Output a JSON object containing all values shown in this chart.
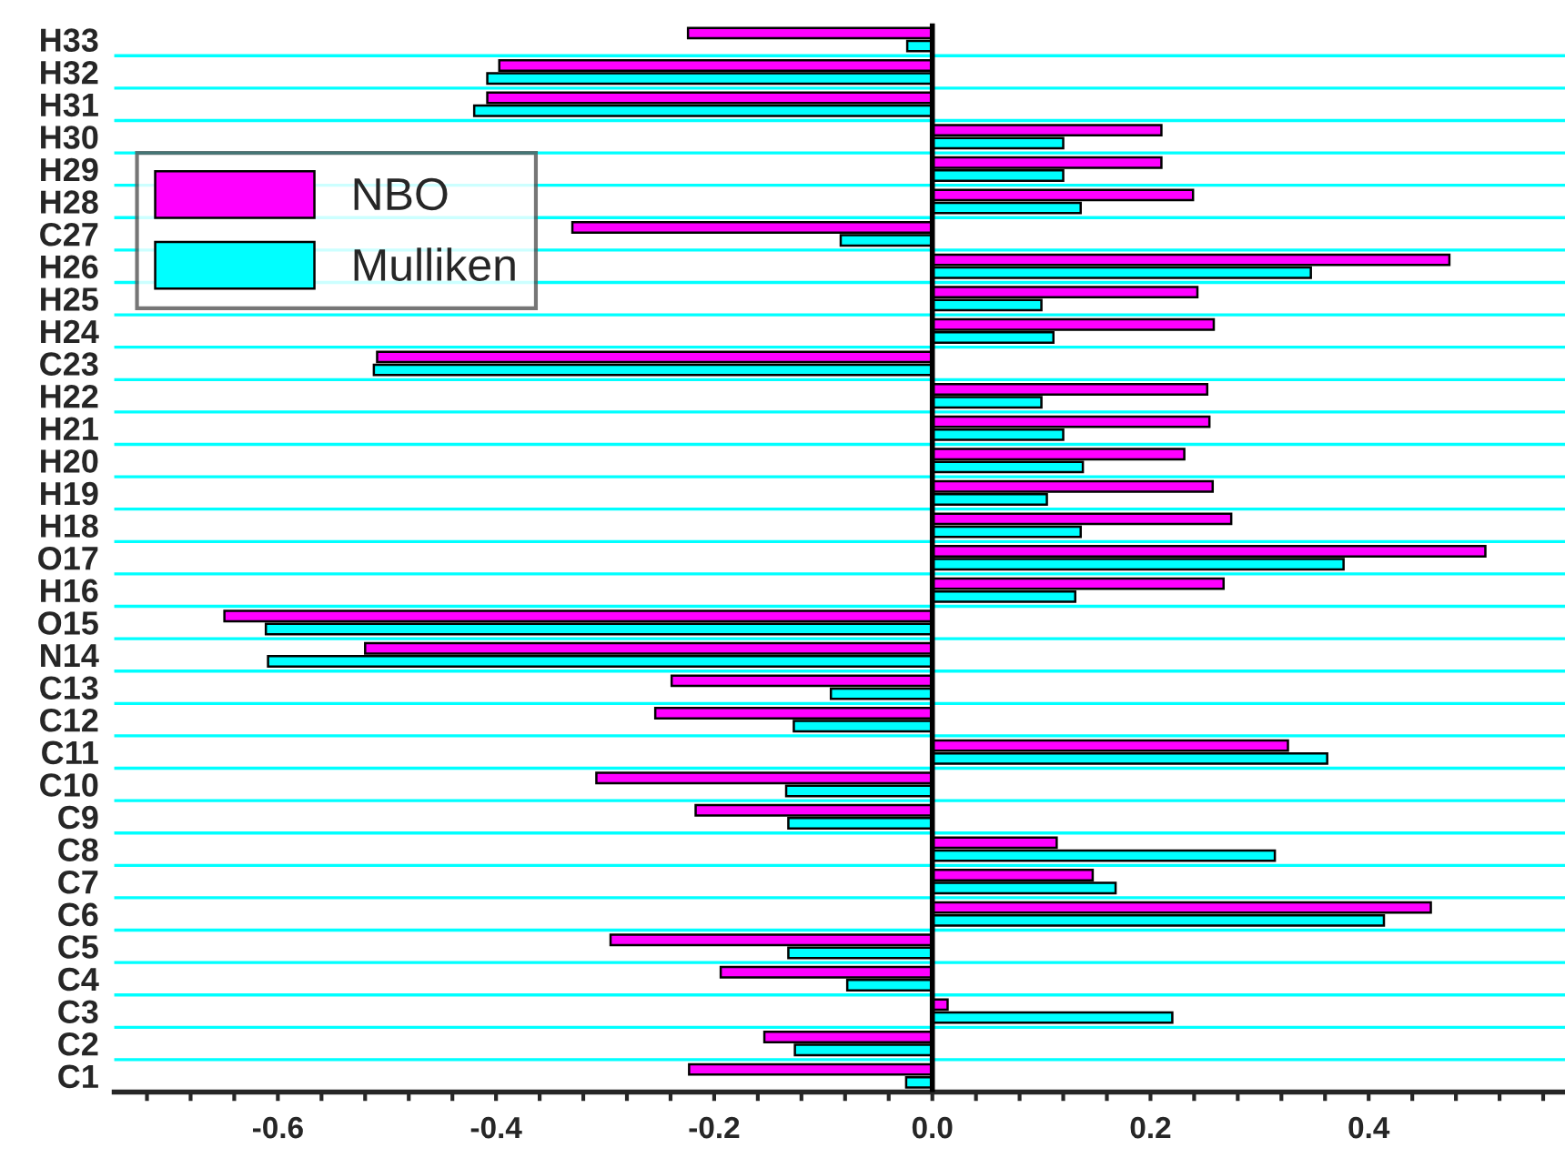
{
  "chart_data": {
    "type": "bar",
    "orientation": "horizontal",
    "categories": [
      "H33",
      "H32",
      "H31",
      "H30",
      "H29",
      "H28",
      "C27",
      "H26",
      "H25",
      "H24",
      "C23",
      "H22",
      "H21",
      "H20",
      "H19",
      "H18",
      "O17",
      "H16",
      "O15",
      "N14",
      "C13",
      "C12",
      "C11",
      "C10",
      "C9",
      "C8",
      "C7",
      "C6",
      "C5",
      "C4",
      "C3",
      "C2",
      "C1"
    ],
    "series": [
      {
        "name": "NBO",
        "color": "#ff00ff",
        "values": [
          -0.224,
          -0.397,
          -0.408,
          0.21,
          0.21,
          0.239,
          -0.33,
          0.474,
          0.243,
          0.258,
          -0.509,
          0.252,
          0.254,
          0.231,
          0.257,
          0.274,
          0.507,
          0.267,
          -0.649,
          -0.52,
          -0.239,
          -0.254,
          0.326,
          -0.308,
          -0.217,
          0.114,
          0.147,
          0.457,
          -0.295,
          -0.194,
          0.014,
          -0.154,
          -0.223
        ]
      },
      {
        "name": "Mulliken",
        "color": "#00ffff",
        "values": [
          -0.023,
          -0.408,
          -0.42,
          0.12,
          0.12,
          0.136,
          -0.084,
          0.347,
          0.1,
          0.111,
          -0.512,
          0.1,
          0.12,
          0.138,
          0.105,
          0.136,
          0.377,
          0.131,
          -0.611,
          -0.609,
          -0.093,
          -0.127,
          0.362,
          -0.134,
          -0.132,
          0.314,
          0.168,
          0.414,
          -0.132,
          -0.078,
          0.22,
          -0.126,
          -0.024
        ]
      }
    ],
    "xlim": [
      -0.75,
      0.58
    ],
    "xticks": [
      {
        "value": -0.72,
        "label": null
      },
      {
        "value": -0.68,
        "label": null
      },
      {
        "value": -0.64,
        "label": null
      },
      {
        "value": -0.6,
        "label": "-0.6"
      },
      {
        "value": -0.56,
        "label": null
      },
      {
        "value": -0.52,
        "label": null
      },
      {
        "value": -0.48,
        "label": null
      },
      {
        "value": -0.44,
        "label": null
      },
      {
        "value": -0.4,
        "label": "-0.4"
      },
      {
        "value": -0.36,
        "label": null
      },
      {
        "value": -0.32,
        "label": null
      },
      {
        "value": -0.28,
        "label": null
      },
      {
        "value": -0.24,
        "label": null
      },
      {
        "value": -0.2,
        "label": "-0.2"
      },
      {
        "value": -0.16,
        "label": null
      },
      {
        "value": -0.12,
        "label": null
      },
      {
        "value": -0.08,
        "label": null
      },
      {
        "value": -0.04,
        "label": null
      },
      {
        "value": 0.0,
        "label": "0.0"
      },
      {
        "value": 0.04,
        "label": null
      },
      {
        "value": 0.08,
        "label": null
      },
      {
        "value": 0.12,
        "label": null
      },
      {
        "value": 0.16,
        "label": null
      },
      {
        "value": 0.2,
        "label": "0.2"
      },
      {
        "value": 0.24,
        "label": null
      },
      {
        "value": 0.28,
        "label": null
      },
      {
        "value": 0.32,
        "label": null
      },
      {
        "value": 0.36,
        "label": null
      },
      {
        "value": 0.4,
        "label": "0.4"
      },
      {
        "value": 0.44,
        "label": null
      },
      {
        "value": 0.48,
        "label": null
      },
      {
        "value": 0.52,
        "label": null
      },
      {
        "value": 0.56,
        "label": null
      }
    ],
    "ref_lines": [
      {
        "axis": "x",
        "value": 0,
        "color": "#000000"
      }
    ],
    "grid": "y",
    "legend": "top left"
  }
}
